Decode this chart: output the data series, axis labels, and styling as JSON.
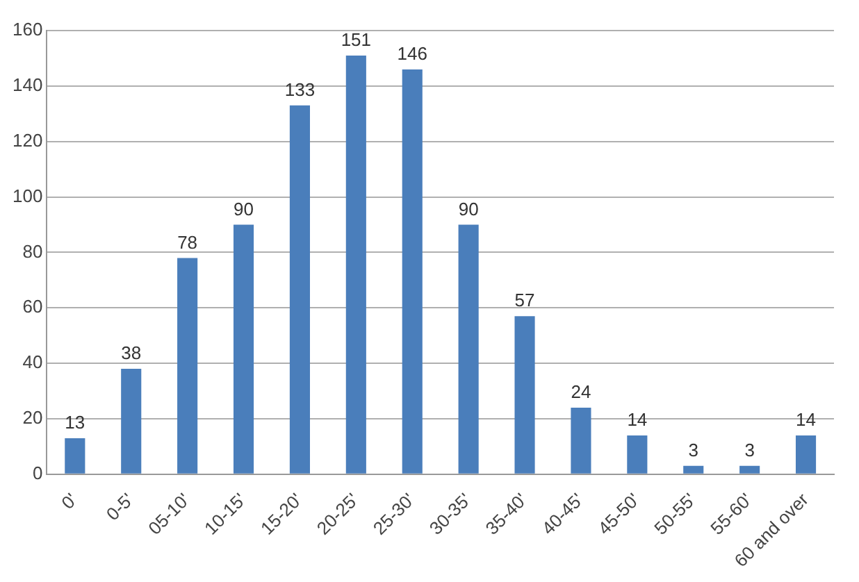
{
  "chart_data": {
    "type": "bar",
    "categories": [
      "0'",
      "0-5'",
      "05-10'",
      "10-15'",
      "15-20'",
      "20-25'",
      "25-30'",
      "30-35'",
      "35-40'",
      "40-45'",
      "45-50'",
      "50-55'",
      "55-60'",
      "60 and over"
    ],
    "values": [
      13,
      38,
      78,
      90,
      133,
      151,
      146,
      90,
      57,
      24,
      14,
      3,
      3,
      14
    ],
    "color": "#4a7ebb",
    "ylim": [
      0,
      160
    ],
    "yticks": [
      0,
      20,
      40,
      60,
      80,
      100,
      120,
      140,
      160
    ],
    "grid": "y",
    "data_labels": true,
    "legend": false
  }
}
